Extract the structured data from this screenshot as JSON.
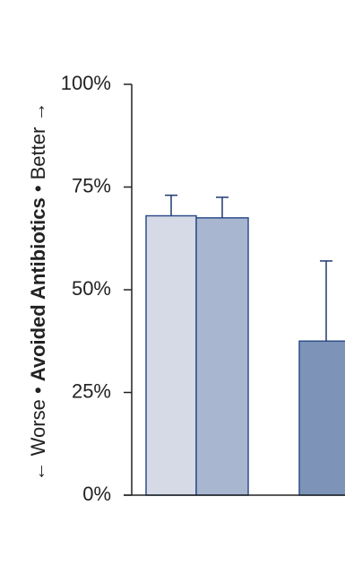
{
  "chart_data": {
    "type": "bar",
    "ylabel": {
      "prefix": "← Worse • ",
      "main": "Avoided Antibiotics",
      "suffix": " • Better →"
    },
    "ylim": [
      0,
      100
    ],
    "yticks": [
      {
        "value": 0,
        "label": "0%"
      },
      {
        "value": 25,
        "label": "25%"
      },
      {
        "value": 50,
        "label": "50%"
      },
      {
        "value": 75,
        "label": "75%"
      },
      {
        "value": 100,
        "label": "100%"
      }
    ],
    "grid": false,
    "bars": [
      {
        "value": 68,
        "error_upper": 73,
        "color": "#d5dae6",
        "stroke": "#2f4f8a"
      },
      {
        "value": 67.5,
        "error_upper": 72.5,
        "color": "#a9b6cf",
        "stroke": "#2f4f8a"
      },
      {
        "value": 37.5,
        "error_upper": 57,
        "color": "#7d93b8",
        "stroke": "#2f4f8a"
      }
    ]
  }
}
